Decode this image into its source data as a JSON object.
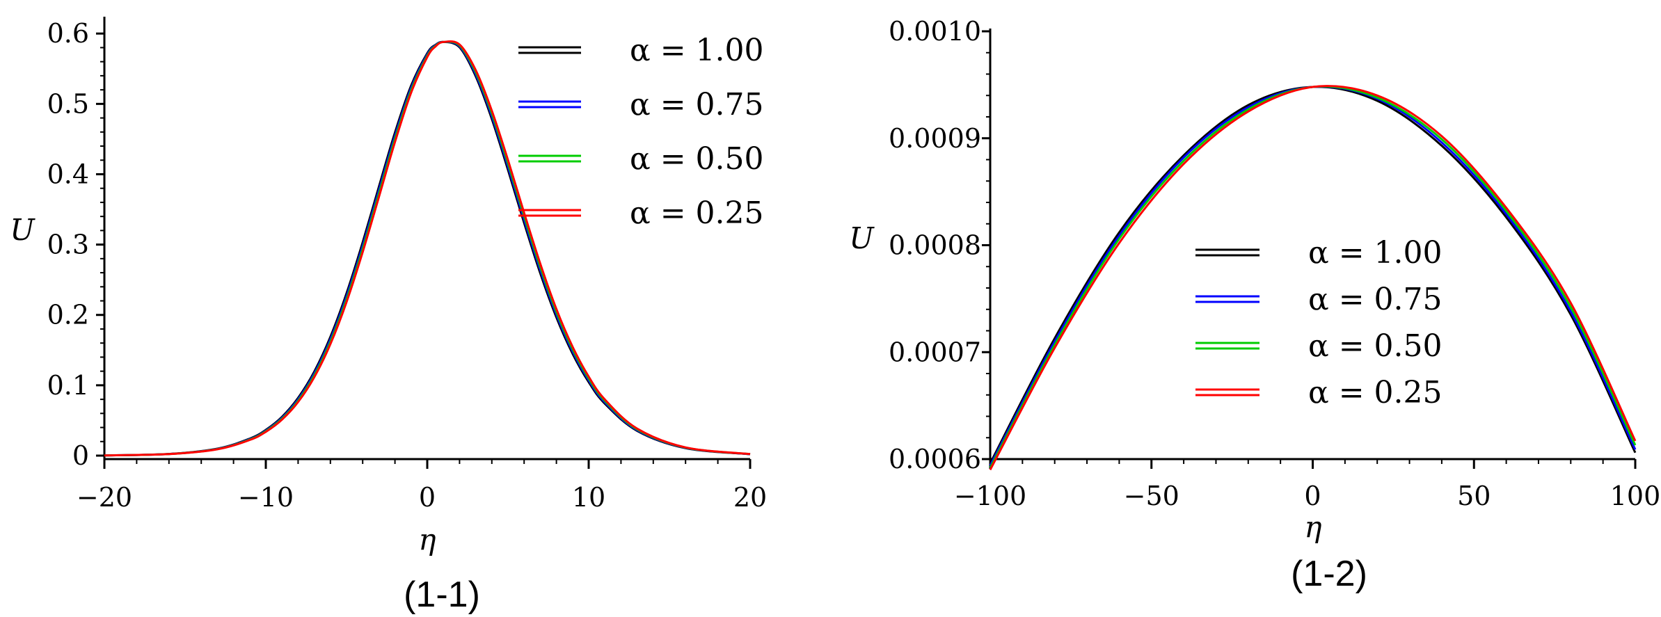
{
  "figure": {
    "captions": [
      "(1-1)",
      "(1-2)"
    ]
  },
  "chart_data": [
    {
      "type": "line",
      "xlabel": "η",
      "ylabel": "U",
      "xlim": [
        -20,
        20
      ],
      "ylim": [
        0,
        0.62
      ],
      "xticks": [
        -20,
        -10,
        0,
        10,
        20
      ],
      "xtick_labels": [
        "−20",
        "−10",
        "0",
        "10",
        "20"
      ],
      "yticks": [
        0,
        0.1,
        0.2,
        0.3,
        0.4,
        0.5,
        0.6
      ],
      "ytick_labels": [
        "0",
        "0.1",
        "0.2",
        "0.3",
        "0.4",
        "0.5",
        "0.6"
      ],
      "legend": {
        "placement": "top-right"
      },
      "x": [
        -20,
        -16,
        -13,
        -11,
        -10,
        -9,
        -8,
        -7,
        -6,
        -5,
        -4,
        -3,
        -2,
        -1,
        0,
        0.5,
        1,
        2,
        3,
        4,
        5,
        6,
        7,
        8,
        9,
        10,
        11,
        13,
        16,
        20
      ],
      "series": [
        {
          "name": "α = 1.00",
          "color": "#000000",
          "values": [
            0.0003,
            0.0024,
            0.0099,
            0.0241,
            0.0366,
            0.0551,
            0.0821,
            0.1194,
            0.1689,
            0.2308,
            0.3033,
            0.3819,
            0.4593,
            0.526,
            0.572,
            0.5838,
            0.588,
            0.5804,
            0.5393,
            0.4785,
            0.4062,
            0.3307,
            0.2592,
            0.1965,
            0.145,
            0.1045,
            0.0739,
            0.0352,
            0.0106,
            0.002
          ]
        },
        {
          "name": "α = 0.75",
          "color": "#0000ff",
          "values": [
            0.0003,
            0.0023,
            0.0096,
            0.0234,
            0.0356,
            0.0537,
            0.0801,
            0.1167,
            0.1654,
            0.2266,
            0.2986,
            0.377,
            0.4548,
            0.5227,
            0.5703,
            0.5831,
            0.588,
            0.5818,
            0.5422,
            0.4825,
            0.4109,
            0.3355,
            0.2638,
            0.2004,
            0.1483,
            0.1071,
            0.0758,
            0.0362,
            0.011,
            0.0021
          ]
        },
        {
          "name": "α = 0.50",
          "color": "#00cc00",
          "values": [
            0.0003,
            0.0023,
            0.0093,
            0.0228,
            0.0347,
            0.0524,
            0.0781,
            0.114,
            0.1619,
            0.2224,
            0.2939,
            0.3721,
            0.4503,
            0.5193,
            0.5685,
            0.5823,
            0.588,
            0.5831,
            0.5452,
            0.4865,
            0.4156,
            0.3404,
            0.2683,
            0.2043,
            0.1516,
            0.1097,
            0.0778,
            0.0373,
            0.0114,
            0.0022
          ]
        },
        {
          "name": "α = 0.25",
          "color": "#ff0000",
          "values": [
            0.0003,
            0.0022,
            0.009,
            0.0222,
            0.0338,
            0.0511,
            0.0762,
            0.1114,
            0.1585,
            0.2183,
            0.2893,
            0.3672,
            0.4458,
            0.5159,
            0.5666,
            0.5814,
            0.588,
            0.5844,
            0.5481,
            0.4904,
            0.4203,
            0.3452,
            0.2729,
            0.2083,
            0.1549,
            0.1123,
            0.0798,
            0.0384,
            0.0117,
            0.0022
          ]
        }
      ]
    },
    {
      "type": "line",
      "xlabel": "η",
      "ylabel": "U",
      "xlim": [
        -100,
        100
      ],
      "ylim": [
        0.0006,
        0.001
      ],
      "xticks": [
        -100,
        -50,
        0,
        50,
        100
      ],
      "xtick_labels": [
        "−100",
        "−50",
        "0",
        "50",
        "100"
      ],
      "yticks": [
        0.0006,
        0.0007,
        0.0008,
        0.0009,
        0.001
      ],
      "ytick_labels": [
        "0.0006",
        "0.0007",
        "0.0008",
        "0.0009",
        "0.0010"
      ],
      "legend": {
        "placement": "center"
      },
      "x": [
        -100,
        -80,
        -60,
        -40,
        -20,
        0,
        20,
        40,
        60,
        80,
        100
      ],
      "series": [
        {
          "name": "α = 1.00",
          "color": "#000000",
          "values": [
            0.000596,
            0.000713,
            0.000812,
            0.000884,
            0.000931,
            0.000948,
            0.000935,
            0.000893,
            0.000826,
            0.000735,
            0.000606
          ]
        },
        {
          "name": "α = 0.75",
          "color": "#0000ff",
          "values": [
            0.000594,
            0.00071,
            0.000809,
            0.000882,
            0.000929,
            0.000948,
            0.000937,
            0.000896,
            0.000829,
            0.000738,
            0.000609
          ]
        },
        {
          "name": "α = 0.50",
          "color": "#00cc00",
          "values": [
            0.000592,
            0.000707,
            0.000806,
            0.000879,
            0.000927,
            0.000948,
            0.000938,
            0.000899,
            0.000832,
            0.000742,
            0.000613
          ]
        },
        {
          "name": "α = 0.25",
          "color": "#ff0000",
          "values": [
            0.00059,
            0.000704,
            0.000802,
            0.000876,
            0.000925,
            0.000948,
            0.00094,
            0.000902,
            0.000835,
            0.000746,
            0.000617
          ]
        }
      ]
    }
  ]
}
